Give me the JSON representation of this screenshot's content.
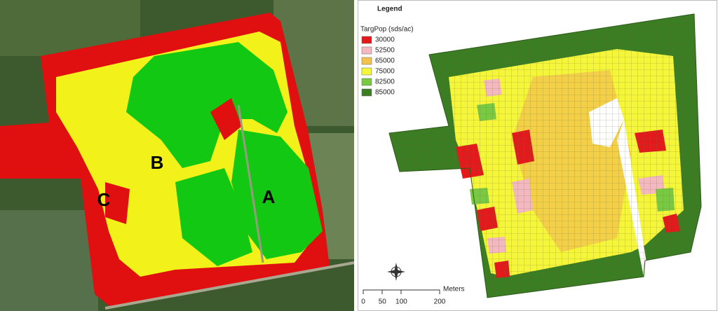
{
  "satellite": {
    "labels": [
      "A",
      "B",
      "C"
    ]
  },
  "prescription": {
    "legend_title": "Legend",
    "attribute": "TargPop (sds/ac)",
    "classes": [
      {
        "value": 30000,
        "color": "#e31a1c"
      },
      {
        "value": 52500,
        "color": "#f4b8c0"
      },
      {
        "value": 65000,
        "color": "#f2c14e"
      },
      {
        "value": 75000,
        "color": "#f5f53a"
      },
      {
        "value": 82500,
        "color": "#7ac943"
      },
      {
        "value": 85000,
        "color": "#3a7d22"
      }
    ],
    "scale": {
      "unit": "Meters",
      "ticks": [
        0,
        50,
        100,
        200
      ]
    }
  }
}
